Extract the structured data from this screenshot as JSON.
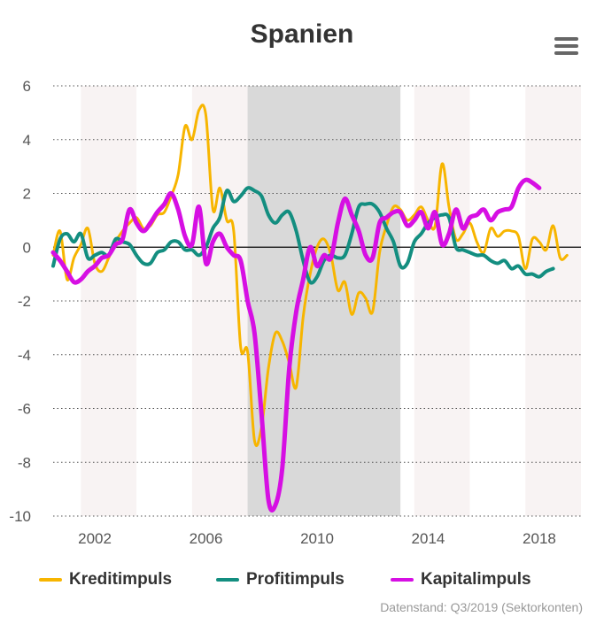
{
  "chart_data": {
    "type": "line",
    "title": "Spanien",
    "xlabel": "",
    "ylabel": "",
    "ylim": [
      -10,
      6
    ],
    "xlim": [
      "2000-07",
      "2019-07"
    ],
    "grid": true,
    "legend_position": "bottom",
    "y_ticks": [
      "6",
      "4",
      "2",
      "0",
      "-2",
      "-4",
      "-6",
      "-8",
      "-10"
    ],
    "x_ticks": [
      "2002",
      "2006",
      "2010",
      "2014",
      "2018"
    ],
    "shaded_periods": [
      {
        "start": "2007-07",
        "end": "2013-01",
        "color": "#d9d9d9"
      }
    ],
    "alternating_bands": [
      {
        "start": "2001-07",
        "end": "2003-07"
      },
      {
        "start": "2005-07",
        "end": "2007-07"
      },
      {
        "start": "2013-07",
        "end": "2015-07"
      },
      {
        "start": "2017-07",
        "end": "2019-07"
      }
    ],
    "series": [
      {
        "name": "Kreditimpuls",
        "color": "#f7b500",
        "points": [
          [
            "2000-07",
            -0.3
          ],
          [
            "2000-10",
            0.6
          ],
          [
            "2001-01",
            -1.2
          ],
          [
            "2001-04",
            -0.4
          ],
          [
            "2001-07",
            0.1
          ],
          [
            "2001-10",
            0.7
          ],
          [
            "2002-01",
            -0.6
          ],
          [
            "2002-04",
            -0.9
          ],
          [
            "2002-07",
            -0.4
          ],
          [
            "2002-10",
            0.2
          ],
          [
            "2003-01",
            0.6
          ],
          [
            "2003-04",
            0.9
          ],
          [
            "2003-07",
            1.1
          ],
          [
            "2003-10",
            0.7
          ],
          [
            "2004-01",
            0.8
          ],
          [
            "2004-04",
            1.2
          ],
          [
            "2004-07",
            1.3
          ],
          [
            "2004-10",
            1.9
          ],
          [
            "2005-01",
            2.7
          ],
          [
            "2005-04",
            4.5
          ],
          [
            "2005-07",
            4.0
          ],
          [
            "2005-10",
            5.1
          ],
          [
            "2006-01",
            4.9
          ],
          [
            "2006-04",
            1.4
          ],
          [
            "2006-07",
            2.2
          ],
          [
            "2006-10",
            1.0
          ],
          [
            "2007-01",
            0.6
          ],
          [
            "2007-04",
            -3.7
          ],
          [
            "2007-07",
            -3.9
          ],
          [
            "2007-10",
            -7.2
          ],
          [
            "2008-01",
            -6.7
          ],
          [
            "2008-04",
            -4.5
          ],
          [
            "2008-07",
            -3.2
          ],
          [
            "2008-10",
            -3.5
          ],
          [
            "2009-01",
            -4.3
          ],
          [
            "2009-04",
            -5.2
          ],
          [
            "2009-07",
            -2.6
          ],
          [
            "2009-10",
            -1.0
          ],
          [
            "2010-01",
            0.0
          ],
          [
            "2010-04",
            0.3
          ],
          [
            "2010-07",
            -0.3
          ],
          [
            "2010-10",
            -1.6
          ],
          [
            "2011-01",
            -1.3
          ],
          [
            "2011-04",
            -2.5
          ],
          [
            "2011-07",
            -1.7
          ],
          [
            "2011-10",
            -1.9
          ],
          [
            "2012-01",
            -2.4
          ],
          [
            "2012-04",
            -0.2
          ],
          [
            "2012-07",
            0.8
          ],
          [
            "2012-10",
            1.5
          ],
          [
            "2013-01",
            1.4
          ],
          [
            "2013-04",
            1.0
          ],
          [
            "2013-07",
            1.2
          ],
          [
            "2013-10",
            1.5
          ],
          [
            "2014-01",
            1.0
          ],
          [
            "2014-04",
            0.8
          ],
          [
            "2014-07",
            3.1
          ],
          [
            "2014-10",
            1.5
          ],
          [
            "2015-01",
            0.3
          ],
          [
            "2015-04",
            0.5
          ],
          [
            "2015-07",
            0.9
          ],
          [
            "2015-10",
            0.2
          ],
          [
            "2016-01",
            -0.2
          ],
          [
            "2016-04",
            0.7
          ],
          [
            "2016-07",
            0.4
          ],
          [
            "2016-10",
            0.6
          ],
          [
            "2017-01",
            0.6
          ],
          [
            "2017-04",
            0.4
          ],
          [
            "2017-07",
            -0.8
          ],
          [
            "2017-10",
            0.3
          ],
          [
            "2018-01",
            0.2
          ],
          [
            "2018-04",
            -0.1
          ],
          [
            "2018-07",
            0.8
          ],
          [
            "2018-10",
            -0.4
          ],
          [
            "2019-01",
            -0.3
          ]
        ]
      },
      {
        "name": "Profitimpuls",
        "color": "#138e80",
        "points": [
          [
            "2000-07",
            -0.7
          ],
          [
            "2000-10",
            0.3
          ],
          [
            "2001-01",
            0.5
          ],
          [
            "2001-04",
            0.2
          ],
          [
            "2001-07",
            0.5
          ],
          [
            "2001-10",
            -0.4
          ],
          [
            "2002-01",
            -0.3
          ],
          [
            "2002-04",
            -0.2
          ],
          [
            "2002-07",
            -0.3
          ],
          [
            "2002-10",
            0.3
          ],
          [
            "2003-01",
            0.2
          ],
          [
            "2003-04",
            0.1
          ],
          [
            "2003-07",
            -0.3
          ],
          [
            "2003-10",
            -0.6
          ],
          [
            "2004-01",
            -0.6
          ],
          [
            "2004-04",
            -0.2
          ],
          [
            "2004-07",
            -0.1
          ],
          [
            "2004-10",
            0.2
          ],
          [
            "2005-01",
            0.2
          ],
          [
            "2005-04",
            -0.1
          ],
          [
            "2005-07",
            -0.1
          ],
          [
            "2005-10",
            -0.3
          ],
          [
            "2006-01",
            0.0
          ],
          [
            "2006-04",
            0.7
          ],
          [
            "2006-07",
            1.1
          ],
          [
            "2006-10",
            2.1
          ],
          [
            "2007-01",
            1.7
          ],
          [
            "2007-04",
            1.9
          ],
          [
            "2007-07",
            2.2
          ],
          [
            "2007-10",
            2.1
          ],
          [
            "2008-01",
            1.9
          ],
          [
            "2008-04",
            1.2
          ],
          [
            "2008-07",
            0.9
          ],
          [
            "2008-10",
            1.2
          ],
          [
            "2009-01",
            1.3
          ],
          [
            "2009-04",
            0.6
          ],
          [
            "2009-07",
            -0.5
          ],
          [
            "2009-10",
            -1.3
          ],
          [
            "2010-01",
            -1.1
          ],
          [
            "2010-04",
            -0.5
          ],
          [
            "2010-07",
            -0.3
          ],
          [
            "2010-10",
            -0.4
          ],
          [
            "2011-01",
            -0.3
          ],
          [
            "2011-04",
            0.5
          ],
          [
            "2011-07",
            1.5
          ],
          [
            "2011-10",
            1.6
          ],
          [
            "2012-01",
            1.6
          ],
          [
            "2012-04",
            1.3
          ],
          [
            "2012-07",
            0.7
          ],
          [
            "2012-10",
            0.2
          ],
          [
            "2013-01",
            -0.7
          ],
          [
            "2013-04",
            -0.6
          ],
          [
            "2013-07",
            0.2
          ],
          [
            "2013-10",
            0.5
          ],
          [
            "2014-01",
            0.9
          ],
          [
            "2014-04",
            1.1
          ],
          [
            "2014-07",
            1.2
          ],
          [
            "2014-10",
            1.1
          ],
          [
            "2015-01",
            0.0
          ],
          [
            "2015-04",
            -0.1
          ],
          [
            "2015-07",
            -0.2
          ],
          [
            "2015-10",
            -0.3
          ],
          [
            "2016-01",
            -0.3
          ],
          [
            "2016-04",
            -0.5
          ],
          [
            "2016-07",
            -0.6
          ],
          [
            "2016-10",
            -0.5
          ],
          [
            "2017-01",
            -0.8
          ],
          [
            "2017-04",
            -0.7
          ],
          [
            "2017-07",
            -1.0
          ],
          [
            "2017-10",
            -1.0
          ],
          [
            "2018-01",
            -1.1
          ],
          [
            "2018-04",
            -0.9
          ],
          [
            "2018-07",
            -0.8
          ]
        ]
      },
      {
        "name": "Kapitalimpuls",
        "color": "#d60fe3",
        "points": [
          [
            "2000-07",
            -0.2
          ],
          [
            "2000-10",
            -0.5
          ],
          [
            "2001-01",
            -0.9
          ],
          [
            "2001-04",
            -1.3
          ],
          [
            "2001-07",
            -1.2
          ],
          [
            "2001-10",
            -0.9
          ],
          [
            "2002-01",
            -0.7
          ],
          [
            "2002-04",
            -0.4
          ],
          [
            "2002-07",
            -0.3
          ],
          [
            "2002-10",
            0.1
          ],
          [
            "2003-01",
            0.3
          ],
          [
            "2003-04",
            1.4
          ],
          [
            "2003-07",
            0.9
          ],
          [
            "2003-10",
            0.6
          ],
          [
            "2004-01",
            0.9
          ],
          [
            "2004-04",
            1.3
          ],
          [
            "2004-07",
            1.6
          ],
          [
            "2004-10",
            2.0
          ],
          [
            "2005-01",
            1.4
          ],
          [
            "2005-04",
            0.4
          ],
          [
            "2005-07",
            0.1
          ],
          [
            "2005-10",
            1.5
          ],
          [
            "2006-01",
            -0.6
          ],
          [
            "2006-04",
            0.2
          ],
          [
            "2006-07",
            0.5
          ],
          [
            "2006-10",
            0.0
          ],
          [
            "2007-01",
            -0.3
          ],
          [
            "2007-04",
            -0.5
          ],
          [
            "2007-07",
            -2.0
          ],
          [
            "2007-10",
            -3.2
          ],
          [
            "2008-01",
            -6.2
          ],
          [
            "2008-04",
            -9.4
          ],
          [
            "2008-07",
            -9.6
          ],
          [
            "2008-10",
            -8.2
          ],
          [
            "2009-01",
            -4.5
          ],
          [
            "2009-04",
            -2.4
          ],
          [
            "2009-07",
            -1.2
          ],
          [
            "2009-10",
            0.0
          ],
          [
            "2010-01",
            -0.7
          ],
          [
            "2010-04",
            -0.3
          ],
          [
            "2010-07",
            -0.4
          ],
          [
            "2010-10",
            0.9
          ],
          [
            "2011-01",
            1.8
          ],
          [
            "2011-04",
            1.2
          ],
          [
            "2011-07",
            0.6
          ],
          [
            "2011-10",
            -0.3
          ],
          [
            "2012-01",
            -0.4
          ],
          [
            "2012-04",
            0.9
          ],
          [
            "2012-07",
            1.1
          ],
          [
            "2012-10",
            1.3
          ],
          [
            "2013-01",
            1.3
          ],
          [
            "2013-04",
            0.8
          ],
          [
            "2013-07",
            1.0
          ],
          [
            "2013-10",
            1.3
          ],
          [
            "2014-01",
            0.7
          ],
          [
            "2014-04",
            1.3
          ],
          [
            "2014-07",
            0.1
          ],
          [
            "2014-10",
            0.5
          ],
          [
            "2015-01",
            1.4
          ],
          [
            "2015-04",
            0.7
          ],
          [
            "2015-07",
            1.1
          ],
          [
            "2015-10",
            1.2
          ],
          [
            "2016-01",
            1.4
          ],
          [
            "2016-04",
            1.0
          ],
          [
            "2016-07",
            1.3
          ],
          [
            "2016-10",
            1.4
          ],
          [
            "2017-01",
            1.5
          ],
          [
            "2017-04",
            2.2
          ],
          [
            "2017-07",
            2.5
          ],
          [
            "2017-10",
            2.4
          ],
          [
            "2018-01",
            2.2
          ]
        ]
      }
    ]
  },
  "credit": "Datenstand: Q3/2019 (Sektorkonten)"
}
